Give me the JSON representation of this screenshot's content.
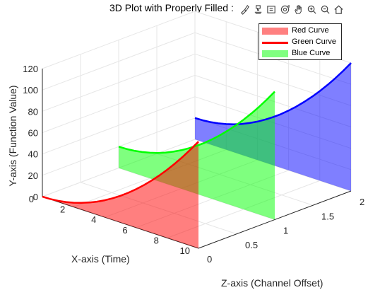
{
  "window": {
    "title": "3D Plot with Properly Filled :"
  },
  "toolbar": {
    "items": [
      {
        "name": "brush-data-icon"
      },
      {
        "name": "data-tips-icon"
      },
      {
        "name": "link-plot-icon"
      },
      {
        "name": "rotate-3d-icon"
      },
      {
        "name": "pan-hand-icon"
      },
      {
        "name": "zoom-in-icon"
      },
      {
        "name": "zoom-out-icon"
      },
      {
        "name": "home-restore-icon"
      }
    ]
  },
  "chart_data": {
    "type": "line",
    "title": "3D Plot with Properly Filled :",
    "xlabel": "X-axis (Time)",
    "ylabel": "Y-axis (Function Value)",
    "zlabel": "Z-axis (Channel Offset)",
    "xlim": [
      0,
      10
    ],
    "ylim": [
      0,
      120
    ],
    "zlim": [
      0,
      2
    ],
    "x_ticks": [
      "0",
      "2",
      "4",
      "6",
      "8",
      "10"
    ],
    "y_ticks": [
      "0",
      "20",
      "40",
      "60",
      "80",
      "100",
      "120"
    ],
    "z_ticks": [
      "0",
      "0.5",
      "1",
      "1.5",
      "2"
    ],
    "grid": true,
    "legend_position": "top-right",
    "x": [
      0,
      0.5,
      1,
      1.5,
      2,
      2.5,
      3,
      3.5,
      4,
      4.5,
      5,
      5.5,
      6,
      6.5,
      7,
      7.5,
      8,
      8.5,
      9,
      9.5,
      10
    ],
    "series": [
      {
        "name": "Red Curve",
        "z_offset": 0,
        "color": "#ff0000",
        "fill_color": "#ff0000",
        "fill_alpha": 0.5,
        "y": [
          0,
          0.25,
          1,
          2.25,
          4,
          6.25,
          9,
          12.25,
          16,
          20.25,
          25,
          30.25,
          36,
          42.25,
          49,
          56.25,
          64,
          72.25,
          81,
          90.25,
          100
        ]
      },
      {
        "name": "Green Curve",
        "z_offset": 1,
        "color": "#00ff00",
        "fill_color": "#00ff00",
        "fill_alpha": 0.5,
        "y": [
          20,
          20.25,
          21,
          22.25,
          24,
          26.25,
          29,
          32.25,
          36,
          40.25,
          45,
          50.25,
          56,
          62.25,
          69,
          76.25,
          84,
          92.25,
          101,
          110.25,
          120
        ]
      },
      {
        "name": "Blue Curve",
        "z_offset": 2,
        "color": "#0000ff",
        "fill_color": "#0000ff",
        "fill_alpha": 0.5,
        "y": [
          20,
          20.25,
          21,
          22.25,
          24,
          26.25,
          29,
          32.25,
          36,
          40.25,
          45,
          50.25,
          56,
          62.25,
          69,
          76.25,
          84,
          92.25,
          101,
          110.25,
          120
        ]
      }
    ]
  },
  "legend": {
    "entries": [
      {
        "label": "Red Curve",
        "color": "#ff8080",
        "style": "patch"
      },
      {
        "label": "Green Curve",
        "color": "#ff0000",
        "style": "line"
      },
      {
        "label": "Blue Curve",
        "color": "#80ff80",
        "style": "patch"
      }
    ]
  },
  "colors": {
    "background": "#ffffff",
    "grid": "#e6e6e6",
    "text": "#262626"
  }
}
